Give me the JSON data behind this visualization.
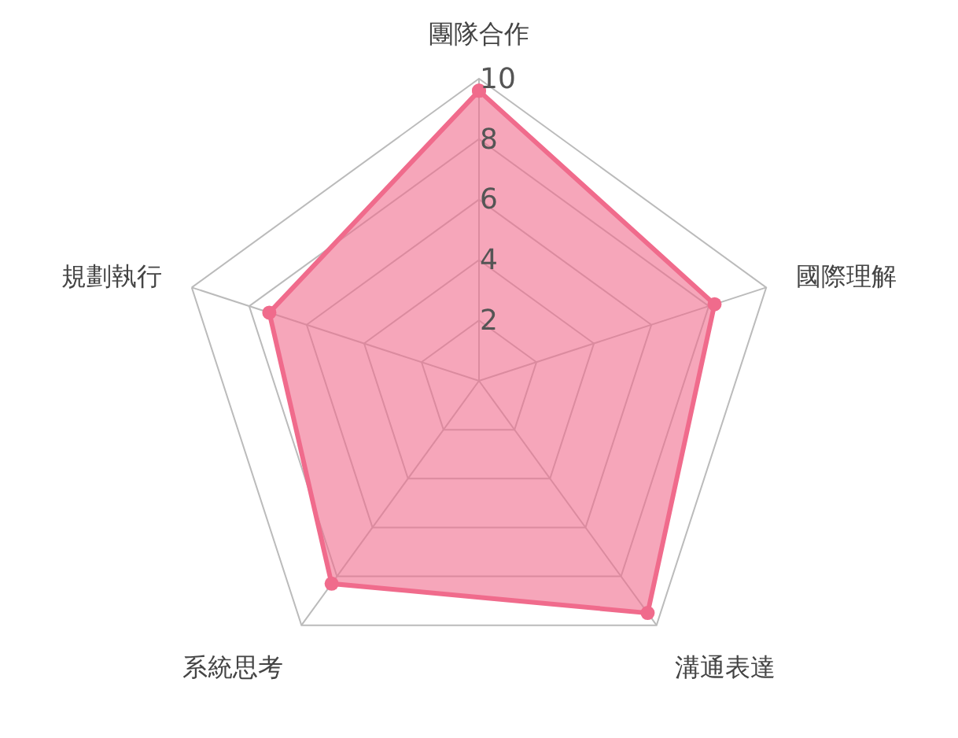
{
  "chart_data": {
    "type": "radar",
    "categories": [
      "團隊合作",
      "國際理解",
      "溝通表達",
      "系統思考",
      "規劃執行"
    ],
    "series": [
      {
        "color": "#f06b8c",
        "values": [
          9.6,
          8.2,
          9.5,
          8.3,
          7.3
        ]
      }
    ],
    "ylim": [
      0,
      10
    ],
    "yticks": [
      2,
      4,
      6,
      8,
      10
    ],
    "grid": true,
    "marker": "circle"
  }
}
